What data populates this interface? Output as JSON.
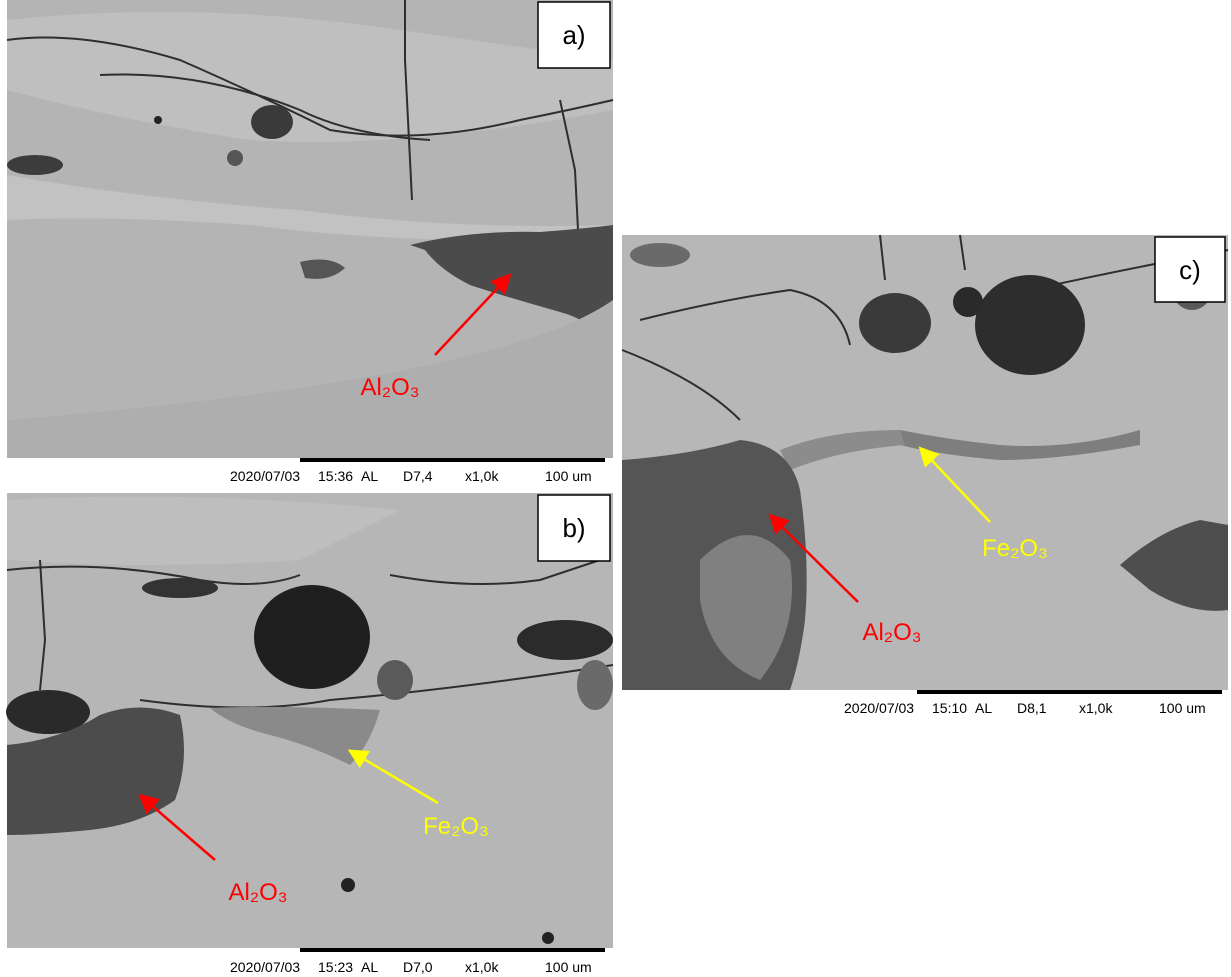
{
  "panels": [
    {
      "label": "a)",
      "annotations": [
        {
          "text": "Al₂O₃"
        }
      ],
      "footer": {
        "date": "2020/07/03",
        "time": "15:36",
        "mode": "AL",
        "distance": "D7,4",
        "magnification": "x1,0k",
        "scale": "100 um"
      }
    },
    {
      "label": "b)",
      "annotations": [
        {
          "text": "Al₂O₃"
        },
        {
          "text": "Fe₂O₃"
        }
      ],
      "footer": {
        "date": "2020/07/03",
        "time": "15:23",
        "mode": "AL",
        "distance": "D7,0",
        "magnification": "x1,0k",
        "scale": "100 um"
      }
    },
    {
      "label": "c)",
      "annotations": [
        {
          "text": "Al₂O₃"
        },
        {
          "text": "Fe₂O₃"
        }
      ],
      "footer": {
        "date": "2020/07/03",
        "time": "15:10",
        "mode": "AL",
        "distance": "D8,1",
        "magnification": "x1,0k",
        "scale": "100 um"
      }
    }
  ]
}
